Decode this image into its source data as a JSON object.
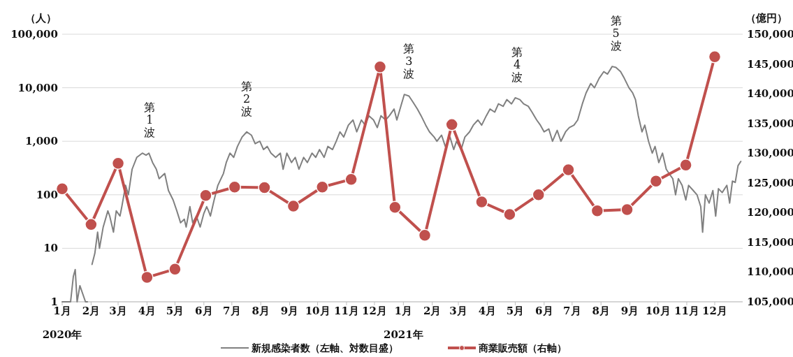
{
  "chart_data": {
    "type": "line",
    "ylabel": "（人）",
    "y2label": "（億円）",
    "log": "y",
    "grid": "y",
    "legend": "bottom",
    "xlim": [
      "2020-01-01",
      "2021-12-31"
    ],
    "xticks": [
      {
        "value": "2020-01-01",
        "label": "1月\n2020年"
      },
      {
        "value": "2020-02-01",
        "label": "2月"
      },
      {
        "value": "2020-03-01",
        "label": "3月"
      },
      {
        "value": "2020-04-01",
        "label": "4月"
      },
      {
        "value": "2020-05-01",
        "label": "5月"
      },
      {
        "value": "2020-06-01",
        "label": "6月"
      },
      {
        "value": "2020-07-01",
        "label": "7月"
      },
      {
        "value": "2020-08-01",
        "label": "8月"
      },
      {
        "value": "2020-09-01",
        "label": "9月"
      },
      {
        "value": "2020-10-01",
        "label": "10月"
      },
      {
        "value": "2020-11-01",
        "label": "11月"
      },
      {
        "value": "2020-12-01",
        "label": "12月"
      },
      {
        "value": "2021-01-01",
        "label": "1月\n2021年"
      },
      {
        "value": "2021-02-01",
        "label": "2月"
      },
      {
        "value": "2021-03-01",
        "label": "3月"
      },
      {
        "value": "2021-04-01",
        "label": "4月"
      },
      {
        "value": "2021-05-01",
        "label": "5月"
      },
      {
        "value": "2021-06-01",
        "label": "6月"
      },
      {
        "value": "2021-07-01",
        "label": "7月"
      },
      {
        "value": "2021-08-01",
        "label": "8月"
      },
      {
        "value": "2021-09-01",
        "label": "9月"
      },
      {
        "value": "2021-10-01",
        "label": "10月"
      },
      {
        "value": "2021-11-01",
        "label": "11月"
      },
      {
        "value": "2021-12-01",
        "label": "12月"
      }
    ],
    "ylim": [
      1,
      100000
    ],
    "yticks": [
      {
        "value": 1,
        "label": "1"
      },
      {
        "value": 10,
        "label": "10"
      },
      {
        "value": 100,
        "label": "100"
      },
      {
        "value": 1000,
        "label": "1,000"
      },
      {
        "value": 10000,
        "label": "10,000"
      },
      {
        "value": 100000,
        "label": "100,000"
      }
    ],
    "y2lim": [
      105000,
      150000
    ],
    "y2ticks": [
      {
        "value": 105000,
        "label": "105,000"
      },
      {
        "value": 110000,
        "label": "110,000"
      },
      {
        "value": 115000,
        "label": "115,000"
      },
      {
        "value": 120000,
        "label": "120,000"
      },
      {
        "value": 125000,
        "label": "125,000"
      },
      {
        "value": 130000,
        "label": "130,000"
      },
      {
        "value": 135000,
        "label": "135,000"
      },
      {
        "value": 140000,
        "label": "140,000"
      },
      {
        "value": 145000,
        "label": "145,000"
      },
      {
        "value": 150000,
        "label": "150,000"
      }
    ],
    "series": [
      {
        "name": "新規感染者数（左軸、対数目盛）",
        "color": "#808080",
        "marker": "none",
        "x": [
          "2020-01-01",
          "2020-01-10",
          "2020-01-13",
          "2020-01-15",
          "2020-01-17",
          "2020-01-20",
          "2020-01-26",
          "2020-01-28",
          "2020-01-30",
          "2020-02-02",
          "2020-02-05",
          "2020-02-08",
          "2020-02-10",
          "2020-02-14",
          "2020-02-19",
          "2020-02-21",
          "2020-02-25",
          "2020-02-28",
          "2020-03-03",
          "2020-03-05",
          "2020-03-09",
          "2020-03-12",
          "2020-03-16",
          "2020-03-21",
          "2020-03-27",
          "2020-03-31",
          "2020-04-03",
          "2020-04-07",
          "2020-04-11",
          "2020-04-14",
          "2020-04-20",
          "2020-04-24",
          "2020-04-29",
          "2020-05-03",
          "2020-05-07",
          "2020-05-11",
          "2020-05-13",
          "2020-05-17",
          "2020-05-20",
          "2020-05-24",
          "2020-05-28",
          "2020-06-01",
          "2020-06-04",
          "2020-06-06",
          "2020-06-08",
          "2020-06-12",
          "2020-06-16",
          "2020-06-22",
          "2020-06-25",
          "2020-06-29",
          "2020-07-03",
          "2020-07-07",
          "2020-07-12",
          "2020-07-17",
          "2020-07-22",
          "2020-07-26",
          "2020-07-31",
          "2020-08-04",
          "2020-08-08",
          "2020-08-12",
          "2020-08-17",
          "2020-08-22",
          "2020-08-25",
          "2020-08-29",
          "2020-09-03",
          "2020-09-07",
          "2020-09-11",
          "2020-09-16",
          "2020-09-20",
          "2020-09-25",
          "2020-09-29",
          "2020-10-03",
          "2020-10-08",
          "2020-10-12",
          "2020-10-17",
          "2020-10-21",
          "2020-10-25",
          "2020-10-29",
          "2020-11-03",
          "2020-11-08",
          "2020-11-12",
          "2020-11-17",
          "2020-11-21",
          "2020-11-25",
          "2020-11-30",
          "2020-12-04",
          "2020-12-08",
          "2020-12-13",
          "2020-12-17",
          "2020-12-22",
          "2020-12-25",
          "2020-12-30",
          "2021-01-02",
          "2021-01-07",
          "2021-01-11",
          "2021-01-16",
          "2021-01-20",
          "2021-01-25",
          "2021-01-29",
          "2021-02-03",
          "2021-02-06",
          "2021-02-11",
          "2021-02-15",
          "2021-02-20",
          "2021-02-24",
          "2021-02-27",
          "2021-03-04",
          "2021-03-08",
          "2021-03-13",
          "2021-03-17",
          "2021-03-22",
          "2021-03-26",
          "2021-03-31",
          "2021-04-04",
          "2021-04-09",
          "2021-04-13",
          "2021-04-18",
          "2021-04-22",
          "2021-04-27",
          "2021-05-01",
          "2021-05-06",
          "2021-05-10",
          "2021-05-15",
          "2021-05-19",
          "2021-05-24",
          "2021-05-28",
          "2021-06-01",
          "2021-06-06",
          "2021-06-10",
          "2021-06-15",
          "2021-06-19",
          "2021-06-24",
          "2021-06-28",
          "2021-07-03",
          "2021-07-07",
          "2021-07-12",
          "2021-07-16",
          "2021-07-21",
          "2021-07-25",
          "2021-07-30",
          "2021-08-04",
          "2021-08-08",
          "2021-08-13",
          "2021-08-17",
          "2021-08-22",
          "2021-08-26",
          "2021-08-31",
          "2021-09-04",
          "2021-09-07",
          "2021-09-10",
          "2021-09-14",
          "2021-09-17",
          "2021-09-21",
          "2021-09-25",
          "2021-09-28",
          "2021-10-02",
          "2021-10-06",
          "2021-10-10",
          "2021-10-13",
          "2021-10-17",
          "2021-10-20",
          "2021-10-23",
          "2021-10-27",
          "2021-10-31",
          "2021-11-03",
          "2021-11-08",
          "2021-11-12",
          "2021-11-16",
          "2021-11-18",
          "2021-11-21",
          "2021-11-25",
          "2021-11-29",
          "2021-12-02",
          "2021-12-05",
          "2021-12-09",
          "2021-12-14",
          "2021-12-17",
          "2021-12-20",
          "2021-12-23",
          "2021-12-26",
          "2021-12-29"
        ],
        "values": [
          1,
          1,
          3,
          4,
          1,
          2,
          1,
          1,
          null,
          5,
          8,
          20,
          10,
          25,
          50,
          40,
          20,
          50,
          40,
          60,
          150,
          100,
          300,
          500,
          600,
          550,
          600,
          400,
          300,
          200,
          250,
          120,
          80,
          50,
          30,
          35,
          25,
          60,
          30,
          40,
          25,
          45,
          60,
          50,
          40,
          80,
          150,
          250,
          400,
          600,
          500,
          800,
          1200,
          1500,
          1300,
          900,
          1000,
          700,
          800,
          600,
          500,
          600,
          300,
          600,
          400,
          500,
          300,
          500,
          400,
          600,
          500,
          700,
          500,
          800,
          700,
          1000,
          1500,
          1200,
          2000,
          2500,
          1500,
          2500,
          2000,
          3000,
          2500,
          1800,
          3000,
          2500,
          3000,
          4000,
          2500,
          5000,
          7500,
          7000,
          5500,
          4000,
          3000,
          2000,
          1500,
          1200,
          1000,
          1300,
          800,
          1200,
          700,
          1000,
          700,
          1200,
          1500,
          2000,
          2500,
          2000,
          3000,
          4000,
          3500,
          5000,
          4500,
          6000,
          5000,
          6500,
          6000,
          5000,
          4500,
          3500,
          2500,
          2000,
          1500,
          1700,
          1000,
          1600,
          1000,
          1500,
          1800,
          2000,
          2500,
          5000,
          8000,
          12000,
          10000,
          15000,
          20000,
          18000,
          25000,
          24000,
          20000,
          15000,
          10000,
          8000,
          6000,
          3000,
          1500,
          2000,
          1000,
          600,
          800,
          400,
          600,
          300,
          250,
          200,
          100,
          200,
          150,
          80,
          150,
          120,
          100,
          60,
          20,
          100,
          70,
          120,
          40,
          130,
          110,
          150,
          70,
          180,
          170,
          350,
          420
        ]
      },
      {
        "name": "商業販売額（右軸）",
        "color": "#c0504d",
        "marker": "circle",
        "axis": "y2",
        "x": [
          "2020-01-01",
          "2020-02-01",
          "2020-03-01",
          "2020-04-01",
          "2020-05-01",
          "2020-06-03",
          "2020-07-04",
          "2020-08-05",
          "2020-09-05",
          "2020-10-06",
          "2020-11-06",
          "2020-12-07",
          "2020-12-23",
          "2021-01-24",
          "2021-02-22",
          "2021-03-26",
          "2021-04-25",
          "2021-05-26",
          "2021-06-27",
          "2021-07-28",
          "2021-08-29",
          "2021-09-29",
          "2021-10-31",
          "2021-12-01"
        ],
        "values": [
          124000,
          118000,
          128300,
          109100,
          110500,
          122900,
          124300,
          124200,
          121100,
          124300,
          125600,
          144500,
          120900,
          116200,
          134800,
          121800,
          119700,
          123000,
          127200,
          120300,
          120500,
          125300,
          128000,
          146200
        ]
      }
    ],
    "annotations": [
      {
        "text": "第1波",
        "x": "2020-04-04",
        "y": 600
      },
      {
        "text": "第2波",
        "x": "2020-07-17",
        "y": 1500
      },
      {
        "text": "第3波",
        "x": "2021-01-07",
        "y": 7500
      },
      {
        "text": "第4波",
        "x": "2021-05-03",
        "y": 6500
      },
      {
        "text": "第5波",
        "x": "2021-08-17",
        "y": 25000
      }
    ]
  }
}
